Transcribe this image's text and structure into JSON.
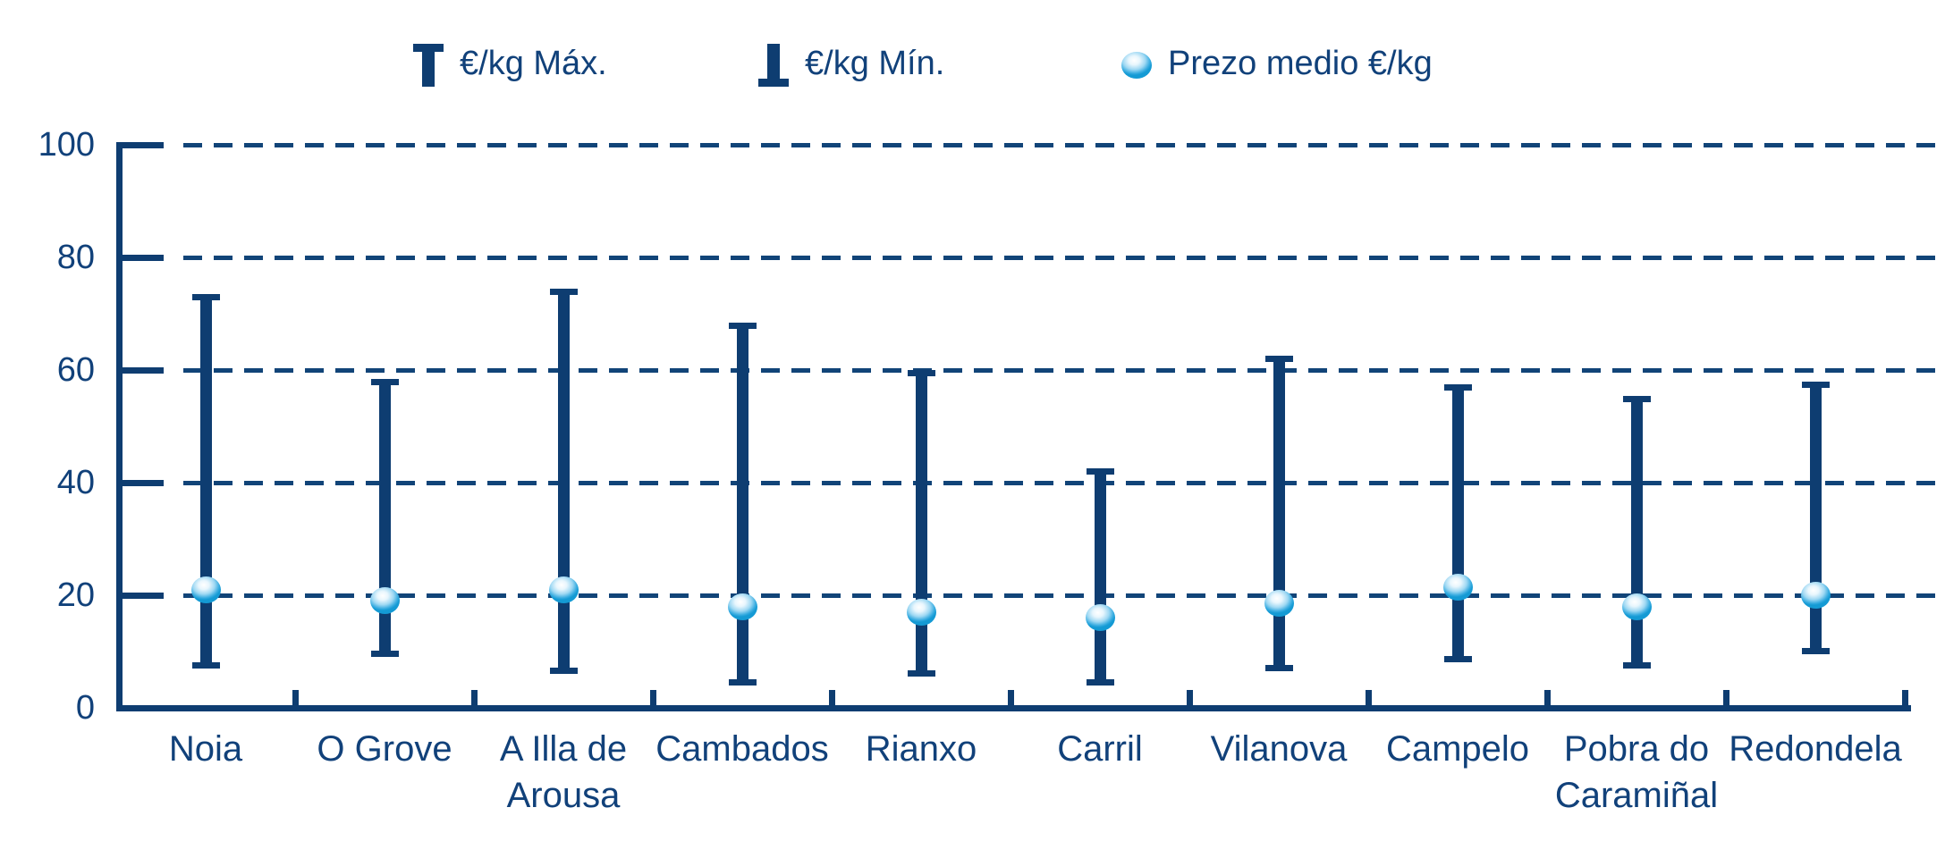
{
  "legend": {
    "max_label": "€/kg Máx.",
    "min_label": "€/kg Mín.",
    "avg_label": "Prezo medio €/kg"
  },
  "colors": {
    "navy": "#0e3d71",
    "text": "#11417a",
    "ball_light": "#e8f6fd",
    "ball_mid": "#9ed8f3",
    "ball_edge": "#149ad4"
  },
  "chart_data": {
    "type": "range-bar",
    "title": "",
    "xlabel": "",
    "ylabel": "",
    "categories": [
      "Noia",
      "O Grove",
      "A Illa de\nArousa",
      "Cambados",
      "Rianxo",
      "Carril",
      "Vilanova",
      "Campelo",
      "Pobra do\nCaramiñal",
      "Redondela"
    ],
    "series": [
      {
        "name": "€/kg Máx.",
        "values": [
          73,
          58,
          74,
          68,
          59.5,
          42,
          62,
          57,
          55,
          57.5
        ]
      },
      {
        "name": "€/kg Mín.",
        "values": [
          7.5,
          9.5,
          6.5,
          4.5,
          6,
          4.5,
          7,
          8.5,
          7.5,
          10
        ]
      },
      {
        "name": "Prezo medio €/kg",
        "values": [
          21,
          19,
          21,
          18,
          17,
          16,
          18.5,
          21.5,
          18,
          20
        ]
      }
    ],
    "ylim": [
      0,
      100
    ],
    "yticks": [
      0,
      20,
      40,
      60,
      80,
      100
    ],
    "grid": "horizontal-dashed",
    "legend_position": "top"
  }
}
